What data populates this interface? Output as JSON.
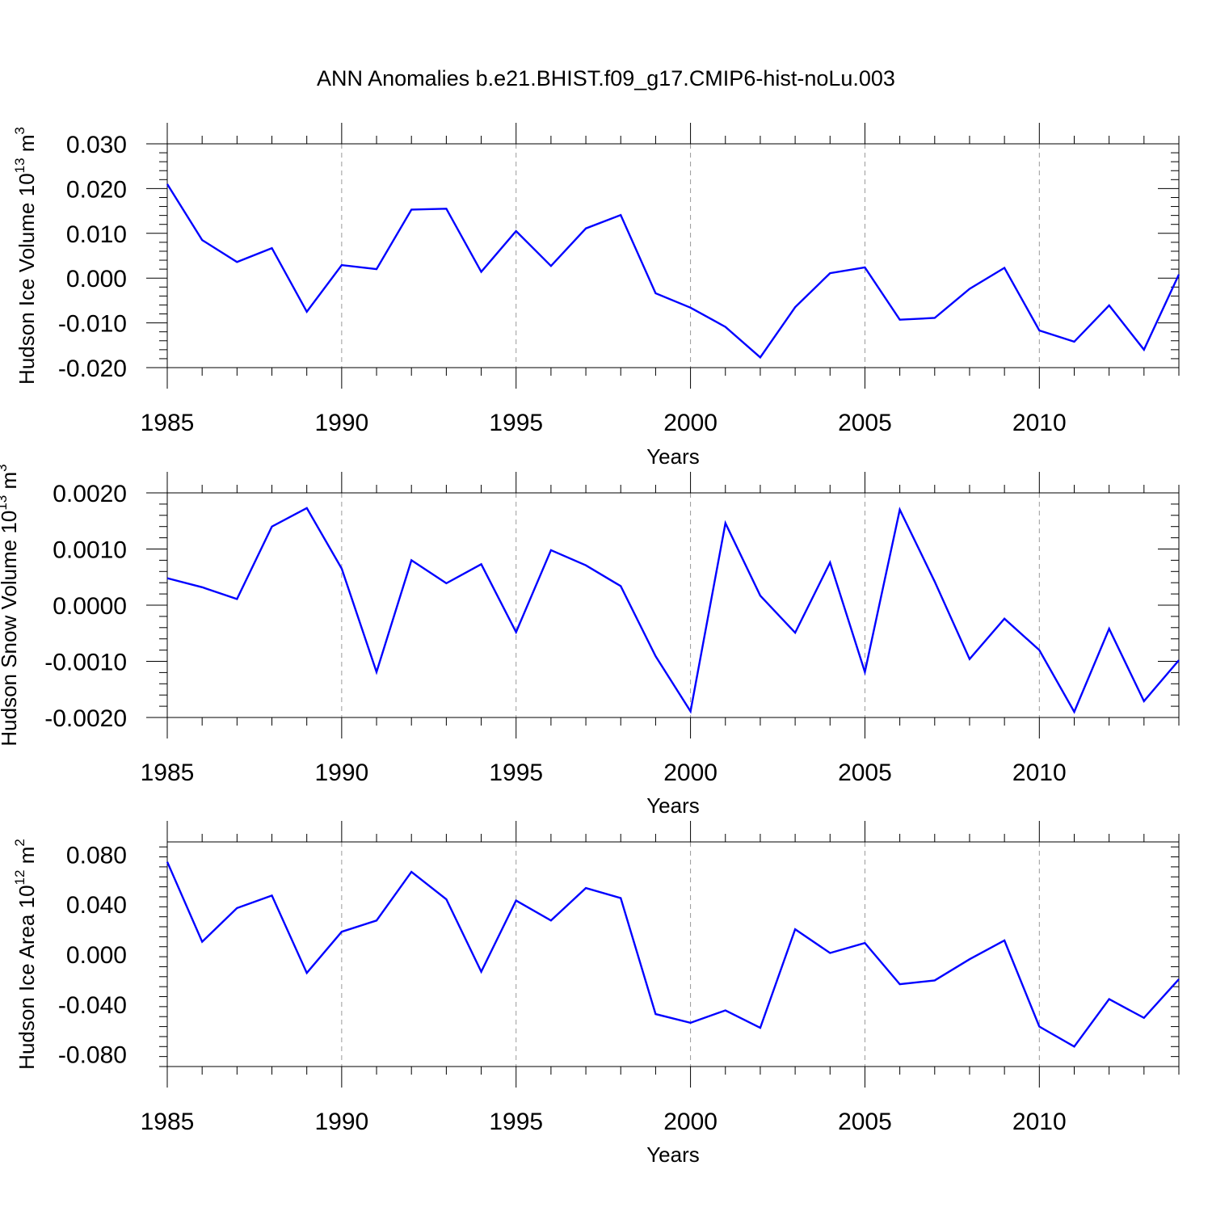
{
  "title": "ANN Anomalies b.e21.BHIST.f09_g17.CMIP6-hist-noLu.003",
  "line_color": "#0000ff",
  "chart_data": [
    {
      "type": "line",
      "ylabel": "Hudson Ice Volume 10",
      "ylabel_exp": "13",
      "ylabel_unit": " m",
      "ylabel_unit_exp": "3",
      "xlabel": "Years",
      "xlim": [
        1985,
        2014
      ],
      "ylim": [
        -0.02,
        0.03
      ],
      "yticks": [
        -0.02,
        -0.01,
        0.0,
        0.01,
        0.02,
        0.03
      ],
      "ytick_labels": [
        "-0.020",
        "-0.010",
        "0.000",
        "0.010",
        "0.020",
        "0.030"
      ],
      "xticks": [
        1985,
        1990,
        1995,
        2000,
        2005,
        2010
      ],
      "xtick_labels": [
        "1985",
        "1990",
        "1995",
        "2000",
        "2005",
        "2010"
      ],
      "x": [
        1985,
        1986,
        1987,
        1988,
        1989,
        1990,
        1991,
        1992,
        1993,
        1994,
        1995,
        1996,
        1997,
        1998,
        1999,
        2000,
        2001,
        2002,
        2003,
        2004,
        2005,
        2006,
        2007,
        2008,
        2009,
        2010,
        2011,
        2012,
        2013,
        2014
      ],
      "series": [
        {
          "values": [
            0.021,
            0.0085,
            0.0036,
            0.0067,
            -0.0075,
            0.0029,
            0.002,
            0.0153,
            0.0155,
            0.0014,
            0.0105,
            0.0027,
            0.0111,
            0.0141,
            -0.0034,
            -0.0066,
            -0.0109,
            -0.0177,
            -0.0065,
            0.0011,
            0.0024,
            -0.0093,
            -0.0089,
            -0.0024,
            0.0023,
            -0.0117,
            -0.0142,
            -0.0061,
            -0.016,
            0.0008
          ]
        }
      ]
    },
    {
      "type": "line",
      "ylabel": "Hudson Snow Volume 10",
      "ylabel_exp": "13",
      "ylabel_unit": " m",
      "ylabel_unit_exp": "3",
      "xlabel": "Years",
      "xlim": [
        1985,
        2014
      ],
      "ylim": [
        -0.002,
        0.002
      ],
      "yticks": [
        -0.002,
        -0.001,
        0.0,
        0.001,
        0.002
      ],
      "ytick_labels": [
        "-0.0020",
        "-0.0010",
        "0.0000",
        "0.0010",
        "0.0020"
      ],
      "xticks": [
        1985,
        1990,
        1995,
        2000,
        2005,
        2010
      ],
      "xtick_labels": [
        "1985",
        "1990",
        "1995",
        "2000",
        "2005",
        "2010"
      ],
      "x": [
        1985,
        1986,
        1987,
        1988,
        1989,
        1990,
        1991,
        1992,
        1993,
        1994,
        1995,
        1996,
        1997,
        1998,
        1999,
        2000,
        2001,
        2002,
        2003,
        2004,
        2005,
        2006,
        2007,
        2008,
        2009,
        2010,
        2011,
        2012,
        2013,
        2014
      ],
      "series": [
        {
          "values": [
            0.00048,
            0.00032,
            0.00011,
            0.0014,
            0.00173,
            0.00065,
            -0.00119,
            0.0008,
            0.00039,
            0.00073,
            -0.00048,
            0.00098,
            0.00071,
            0.00034,
            -0.00091,
            -0.00189,
            0.00146,
            0.00017,
            -0.00049,
            0.00076,
            -0.00119,
            0.0017,
            0.00042,
            -0.00096,
            -0.00024,
            -0.0008,
            -0.0019,
            -0.00042,
            -0.00171,
            -0.00098
          ]
        }
      ]
    },
    {
      "type": "line",
      "ylabel": "Hudson Ice Area 10",
      "ylabel_exp": "12",
      "ylabel_unit": " m",
      "ylabel_unit_exp": "2",
      "xlabel": "Years",
      "xlim": [
        1985,
        2014
      ],
      "ylim": [
        -0.09,
        0.09
      ],
      "yticks": [
        -0.08,
        -0.04,
        0.0,
        0.04,
        0.08
      ],
      "ytick_labels": [
        "-0.080",
        "-0.040",
        "0.000",
        "0.040",
        "0.080"
      ],
      "xticks": [
        1985,
        1990,
        1995,
        2000,
        2005,
        2010
      ],
      "xtick_labels": [
        "1985",
        "1990",
        "1995",
        "2000",
        "2005",
        "2010"
      ],
      "x": [
        1985,
        1986,
        1987,
        1988,
        1989,
        1990,
        1991,
        1992,
        1993,
        1994,
        1995,
        1996,
        1997,
        1998,
        1999,
        2000,
        2001,
        2002,
        2003,
        2004,
        2005,
        2006,
        2007,
        2008,
        2009,
        2010,
        2011,
        2012,
        2013,
        2014
      ],
      "series": [
        {
          "values": [
            0.074,
            0.01,
            0.037,
            0.047,
            -0.015,
            0.018,
            0.027,
            0.066,
            0.044,
            -0.014,
            0.043,
            0.027,
            0.053,
            0.045,
            -0.048,
            -0.055,
            -0.045,
            -0.059,
            0.02,
            0.001,
            0.009,
            -0.024,
            -0.021,
            -0.004,
            0.011,
            -0.058,
            -0.074,
            -0.036,
            -0.051,
            -0.02
          ]
        }
      ]
    }
  ]
}
